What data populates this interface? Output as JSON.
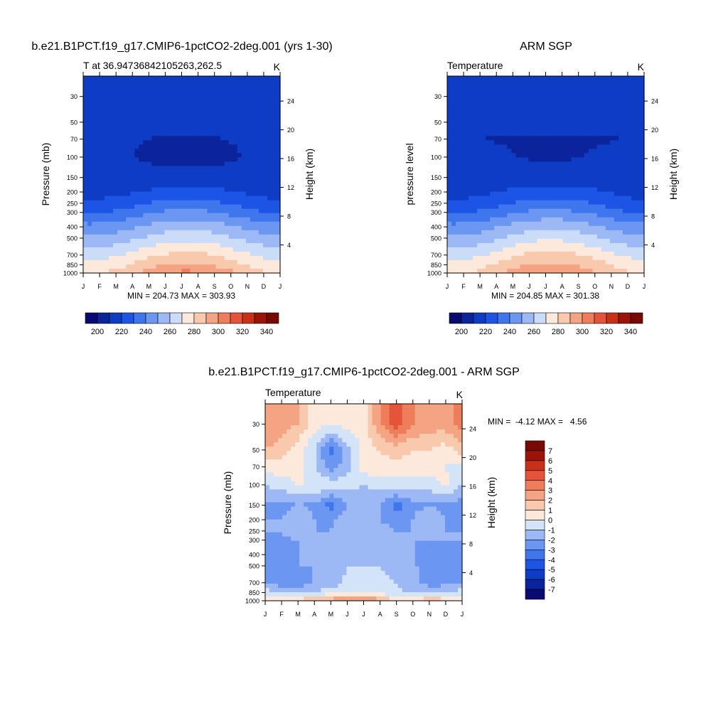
{
  "panels": [
    {
      "title": "b.e21.B1PCT.f19_g17.CMIP6-1pctCO2-2deg.001 (yrs 1-30)",
      "left_string": "T at 36.94736842105263,262.5",
      "right_string": "K",
      "ylabel_left": "Pressure (mb)",
      "ylabel_right": "Height (km)",
      "minmax": "MIN = 204.73 MAX = 303.93"
    },
    {
      "title": "ARM SGP",
      "left_string": "Temperature",
      "right_string": "K",
      "ylabel_left": "pressure level",
      "ylabel_right": "Height (km)",
      "minmax": "MIN = 204.85 MAX = 301.38"
    },
    {
      "title": "b.e21.B1PCT.f19_g17.CMIP6-1pctCO2-2deg.001 - ARM SGP",
      "left_string": "Temperature",
      "right_string": "K",
      "ylabel_left": "Pressure (mb)",
      "ylabel_right": "Height (km)",
      "minmax": "MIN =  -4.12 MAX =   4.56"
    }
  ],
  "colors": {
    "temp_levels": [
      "#0a0a73",
      "#0b239b",
      "#0e3cc4",
      "#1c55e6",
      "#3f76ee",
      "#6b96f2",
      "#9cb8f5",
      "#cadcf8",
      "#fde9dc",
      "#f9c9ad",
      "#f4a482",
      "#ee7d5b",
      "#e55438",
      "#c83018",
      "#9c1408",
      "#780a05"
    ],
    "diff_levels": [
      "#0a0a73",
      "#0b239b",
      "#0e3cc4",
      "#1c55e6",
      "#3f76ee",
      "#6b96f2",
      "#9cb8f5",
      "#d4e4f8",
      "#fde9dc",
      "#f9c9ad",
      "#f4a482",
      "#ee7d5b",
      "#e55438",
      "#c83018",
      "#9c1408",
      "#780a05"
    ]
  },
  "chart_data": [
    {
      "type": "heatmap",
      "title": "b.e21.B1PCT.f19_g17.CMIP6-1pctCO2-2deg.001 (yrs 1-30)",
      "subtitle": "T at 36.94736842105263,262.5",
      "units": "K",
      "xlabel": "",
      "ylabel": "Pressure (mb)",
      "ylabel_right": "Height (km)",
      "x": [
        "J",
        "F",
        "M",
        "A",
        "M",
        "J",
        "J",
        "A",
        "S",
        "O",
        "N",
        "D",
        "J"
      ],
      "y_ticks": [
        30,
        50,
        70,
        100,
        150,
        200,
        250,
        300,
        400,
        500,
        700,
        850,
        1000
      ],
      "y_right_ticks": [
        24,
        20,
        16,
        12,
        8,
        4
      ],
      "y_scale": "log",
      "ylim": [
        1000,
        20
      ],
      "levels": [
        190,
        200,
        210,
        220,
        230,
        240,
        250,
        260,
        270,
        280,
        290,
        300,
        310,
        320,
        330,
        340,
        350
      ],
      "colorbar_labels": [
        "200",
        "220",
        "240",
        "260",
        "280",
        "300",
        "320",
        "340"
      ],
      "min": 204.73,
      "max": 303.93,
      "profile": {
        "p": [
          1000,
          850,
          700,
          500,
          400,
          300,
          250,
          200,
          150,
          100,
          70,
          50,
          30
        ],
        "t_jan": [
          279,
          273,
          266,
          252,
          243,
          229,
          222,
          216,
          213,
          212,
          212,
          214,
          218
        ],
        "t_jul": [
          303,
          292,
          283,
          267,
          257,
          243,
          234,
          224,
          213,
          207,
          209,
          213,
          220
        ]
      }
    },
    {
      "type": "heatmap",
      "title": "ARM SGP",
      "subtitle": "Temperature",
      "units": "K",
      "xlabel": "",
      "ylabel": "pressure level",
      "ylabel_right": "Height (km)",
      "x": [
        "J",
        "F",
        "M",
        "A",
        "M",
        "J",
        "J",
        "A",
        "S",
        "O",
        "N",
        "D",
        "J"
      ],
      "y_ticks": [
        30,
        50,
        70,
        100,
        150,
        200,
        250,
        300,
        400,
        500,
        700,
        850,
        1000
      ],
      "y_right_ticks": [
        24,
        20,
        16,
        12,
        8,
        4
      ],
      "y_scale": "log",
      "ylim": [
        1000,
        20
      ],
      "levels": [
        190,
        200,
        210,
        220,
        230,
        240,
        250,
        260,
        270,
        280,
        290,
        300,
        310,
        320,
        330,
        340,
        350
      ],
      "colorbar_labels": [
        "200",
        "220",
        "240",
        "260",
        "280",
        "300",
        "320",
        "340"
      ],
      "min": 204.85,
      "max": 301.38,
      "profile": {
        "p": [
          1000,
          850,
          700,
          500,
          400,
          300,
          250,
          200,
          150,
          100,
          70,
          50,
          30
        ],
        "t_jan": [
          278,
          274,
          266,
          252,
          243,
          229,
          222,
          216,
          214,
          213,
          210,
          214,
          218
        ],
        "t_jul": [
          301,
          292,
          284,
          268,
          258,
          243,
          234,
          225,
          214,
          209,
          209,
          213,
          220
        ]
      }
    },
    {
      "type": "heatmap",
      "title": "b.e21.B1PCT.f19_g17.CMIP6-1pctCO2-2deg.001 - ARM SGP",
      "subtitle": "Temperature",
      "units": "K",
      "xlabel": "",
      "ylabel": "Pressure (mb)",
      "ylabel_right": "Height (km)",
      "x": [
        "J",
        "F",
        "M",
        "A",
        "M",
        "J",
        "J",
        "A",
        "S",
        "O",
        "N",
        "D",
        "J"
      ],
      "y_ticks": [
        30,
        50,
        70,
        100,
        150,
        200,
        250,
        300,
        400,
        500,
        700,
        850,
        1000
      ],
      "y_right_ticks": [
        24,
        20,
        16,
        12,
        8,
        4
      ],
      "y_scale": "log",
      "ylim": [
        1000,
        20
      ],
      "levels": [
        -8,
        -7,
        -6,
        -5,
        -4,
        -3,
        -2,
        -1,
        0,
        1,
        2,
        3,
        4,
        5,
        6,
        7,
        8
      ],
      "colorbar_labels": [
        "7",
        "6",
        "5",
        "4",
        "3",
        "2",
        "1",
        "0",
        "-1",
        "-2",
        "-3",
        "-4",
        "-5",
        "-6",
        "-7"
      ],
      "min": -4.12,
      "max": 4.56,
      "field": {
        "p": [
          1000,
          850,
          700,
          500,
          400,
          300,
          250,
          200,
          150,
          100,
          70,
          50,
          30
        ],
        "rows": [
          [
            1.0,
            1.2,
            1.5,
            2.5,
            2.8,
            3.2,
            3.5,
            2.5,
            1.0,
            1.0,
            2.0,
            1.5,
            1.0
          ],
          [
            -0.5,
            -1.0,
            -1.5,
            -1.0,
            -0.5,
            -0.3,
            0.2,
            -0.5,
            -0.8,
            -1.5,
            -1.0,
            -0.8,
            -0.5
          ],
          [
            -2.0,
            -2.5,
            -2.5,
            -2.0,
            -1.5,
            -0.8,
            -0.5,
            -0.8,
            -1.0,
            -1.5,
            -2.5,
            -2.5,
            -2.0
          ],
          [
            -2.5,
            -2.5,
            -2.0,
            -2.0,
            -1.5,
            -1.0,
            -1.0,
            -1.0,
            -1.2,
            -1.8,
            -2.5,
            -2.5,
            -2.5
          ],
          [
            -2.5,
            -2.5,
            -2.0,
            -2.0,
            -1.8,
            -1.2,
            -1.5,
            -1.5,
            -1.5,
            -2.0,
            -2.5,
            -2.5,
            -2.5
          ],
          [
            -2.0,
            -2.2,
            -2.0,
            -2.0,
            -1.8,
            -1.5,
            -1.5,
            -1.5,
            -1.8,
            -2.0,
            -2.0,
            -2.0,
            -2.0
          ],
          [
            -2.0,
            -2.0,
            -1.0,
            -2.0,
            -2.0,
            -1.5,
            -1.5,
            -1.5,
            -2.0,
            -2.0,
            -1.5,
            -2.0,
            -2.0
          ],
          [
            -2.0,
            -2.0,
            -1.0,
            -2.0,
            -2.2,
            -1.5,
            -1.5,
            -2.0,
            -2.5,
            -2.0,
            -1.0,
            -2.0,
            -2.2
          ],
          [
            -2.2,
            -2.5,
            -2.0,
            -2.2,
            -3.5,
            -2.0,
            -2.0,
            -2.0,
            -3.5,
            -2.2,
            -2.2,
            -2.2,
            -2.5
          ],
          [
            -1.0,
            -0.5,
            0.0,
            0.0,
            -0.5,
            -0.5,
            -1.0,
            -0.5,
            -0.5,
            -0.5,
            -0.5,
            0.2,
            -1.0
          ],
          [
            0.5,
            0.5,
            0.5,
            -1.0,
            -2.5,
            -1.5,
            0.5,
            0.8,
            0.5,
            0.5,
            0.5,
            0.0,
            -0.5
          ],
          [
            2.0,
            1.5,
            0.5,
            -1.0,
            -3.5,
            -1.5,
            0.3,
            1.0,
            1.5,
            1.0,
            1.0,
            0.5,
            1.5
          ],
          [
            3.0,
            2.5,
            2.0,
            0.5,
            0.0,
            0.5,
            0.5,
            3.0,
            4.5,
            3.0,
            2.5,
            2.5,
            3.5
          ]
        ]
      }
    }
  ]
}
